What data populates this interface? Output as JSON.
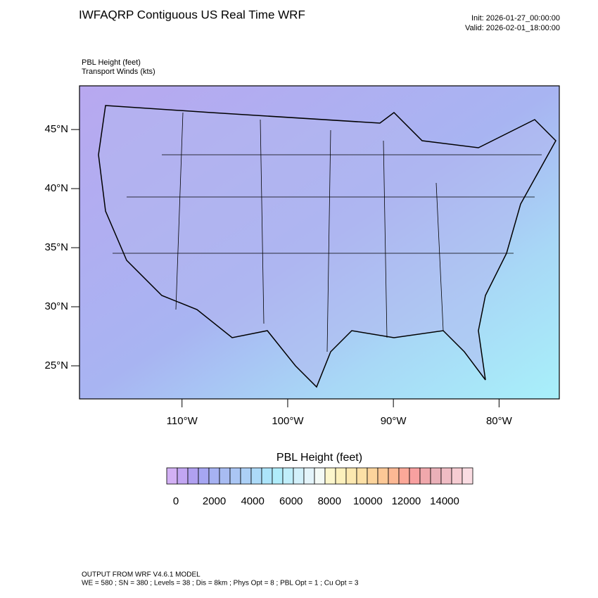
{
  "header": {
    "title": "IWFAQRP Contiguous US Real Time WRF",
    "init": "Init: 2026-01-27_00:00:00",
    "valid": "Valid: 2026-02-01_18:00:00"
  },
  "fields": {
    "primary": "PBL Height   (feet)",
    "secondary": "Transport Winds   (kts)"
  },
  "map": {
    "xlim": [
      -119.7,
      -74.3
    ],
    "ylim": [
      22.2,
      48.7
    ],
    "xticks": [
      {
        "value": -110,
        "label": "110°W"
      },
      {
        "value": -100,
        "label": "100°W"
      },
      {
        "value": -90,
        "label": "90°W"
      },
      {
        "value": -80,
        "label": "80°W"
      }
    ],
    "yticks": [
      {
        "value": 45,
        "label": "45°N"
      },
      {
        "value": 40,
        "label": "40°N"
      },
      {
        "value": 35,
        "label": "35°N"
      },
      {
        "value": 30,
        "label": "30°N"
      },
      {
        "value": 25,
        "label": "25°N"
      }
    ]
  },
  "colorbar": {
    "title": "PBL Height  (feet)",
    "colors": [
      "#d2b0f4",
      "#c2a6f2",
      "#b0a0f0",
      "#a6a6f2",
      "#a6b2f2",
      "#a8bcf2",
      "#aac6f4",
      "#acd0f6",
      "#acdaf8",
      "#acE4fa",
      "#b0ecfa",
      "#c0eefa",
      "#d2f0fa",
      "#e4f4fa",
      "#f4faf6",
      "#fcf6cc",
      "#fcf0bc",
      "#fce8b0",
      "#fce0a6",
      "#fcd49c",
      "#fcc896",
      "#fcb894",
      "#fca898",
      "#f8a0a0",
      "#f0a8ac",
      "#eab0b8",
      "#f0bcc4",
      "#f6ccd2",
      "#fadce2"
    ],
    "ticks": [
      0,
      2000,
      4000,
      6000,
      8000,
      10000,
      12000,
      14000
    ]
  },
  "footer": {
    "line1": "OUTPUT FROM WRF V4.6.1 MODEL",
    "line2": "WE = 580 ; SN = 380 ; Levels = 38 ; Dis = 8km ; Phys Opt = 8 ; PBL Opt = 1 ; Cu Opt = 3"
  }
}
